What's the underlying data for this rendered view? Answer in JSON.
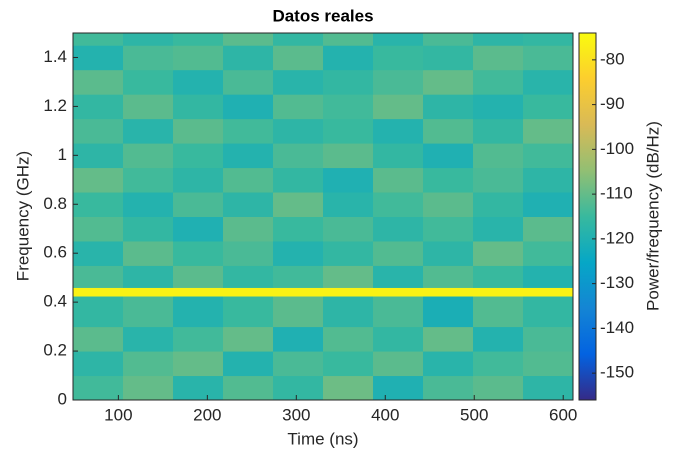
{
  "chart_data": {
    "type": "spectrogram",
    "title": "Datos reales",
    "x_label": "Time (ns)",
    "y_label": "Frequency (GHz)",
    "colorbar_label": "Power/frequency (dB/Hz)",
    "xlim": [
      49,
      611
    ],
    "xticks": [
      100,
      200,
      300,
      400,
      500,
      600
    ],
    "ylim": [
      0,
      1.5
    ],
    "yticks": [
      0,
      0.2,
      0.4,
      0.6,
      0.8,
      1,
      1.2,
      1.4
    ],
    "clim": [
      -156,
      -74
    ],
    "cticks": [
      -150,
      -140,
      -130,
      -120,
      -110,
      -100,
      -90,
      -80
    ],
    "colormap": [
      "#352a87",
      "#0363e1",
      "#1485d4",
      "#06a7c6",
      "#38b99e",
      "#92bf73",
      "#d9ba56",
      "#fcce2e",
      "#f9fb0e"
    ],
    "xbins": [
      49,
      105.2,
      161.4,
      217.6,
      273.8,
      330,
      386.2,
      442.4,
      498.6,
      554.8,
      611
    ],
    "ybins": [
      0,
      0.1,
      0.2,
      0.3,
      0.425,
      0.46,
      0.55,
      0.65,
      0.75,
      0.85,
      0.95,
      1.05,
      1.15,
      1.25,
      1.35,
      1.45,
      1.5
    ],
    "z": [
      [
        -114,
        -110,
        -118,
        -112,
        -116,
        -109,
        -120,
        -113,
        -111,
        -117
      ],
      [
        -117,
        -112,
        -110,
        -119,
        -113,
        -115,
        -111,
        -118,
        -114,
        -112
      ],
      [
        -111,
        -118,
        -114,
        -110,
        -120,
        -112,
        -116,
        -110,
        -119,
        -113
      ],
      [
        -116,
        -113,
        -119,
        -115,
        -111,
        -117,
        -113,
        -121,
        -112,
        -116
      ],
      [
        -76,
        -76,
        -76,
        -76,
        -76,
        -76,
        -76,
        -76,
        -76,
        -76
      ],
      [
        -113,
        -117,
        -111,
        -116,
        -114,
        -110,
        -118,
        -112,
        -115,
        -119
      ],
      [
        -118,
        -111,
        -115,
        -113,
        -119,
        -116,
        -112,
        -117,
        -110,
        -114
      ],
      [
        -112,
        -116,
        -120,
        -111,
        -115,
        -113,
        -117,
        -114,
        -118,
        -111
      ],
      [
        -115,
        -119,
        -113,
        -117,
        -110,
        -118,
        -114,
        -111,
        -116,
        -120
      ],
      [
        -110,
        -114,
        -117,
        -112,
        -116,
        -120,
        -111,
        -115,
        -113,
        -117
      ],
      [
        -117,
        -112,
        -115,
        -119,
        -113,
        -111,
        -116,
        -120,
        -112,
        -114
      ],
      [
        -113,
        -118,
        -111,
        -114,
        -117,
        -115,
        -119,
        -112,
        -116,
        -110
      ],
      [
        -116,
        -111,
        -116,
        -120,
        -112,
        -114,
        -110,
        -117,
        -119,
        -115
      ],
      [
        -111,
        -115,
        -119,
        -113,
        -118,
        -116,
        -113,
        -110,
        -114,
        -118
      ],
      [
        -119,
        -113,
        -112,
        -117,
        -111,
        -119,
        -115,
        -116,
        -111,
        -113
      ],
      [
        -114,
        -117,
        -115,
        -111,
        -116,
        -112,
        -118,
        -113,
        -117,
        -116
      ]
    ]
  }
}
